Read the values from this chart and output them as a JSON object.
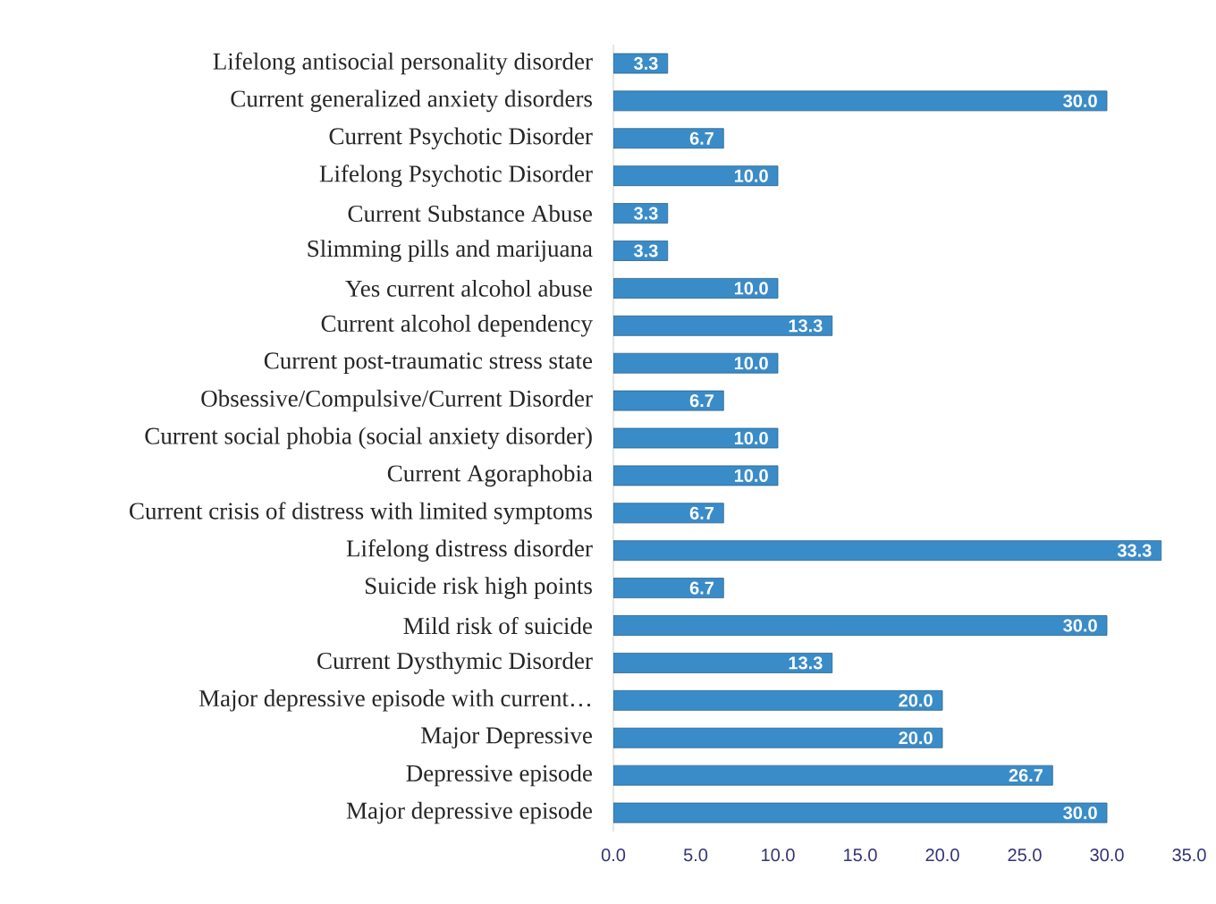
{
  "chart_data": {
    "type": "bar",
    "orientation": "horizontal",
    "color": "#3a8cc8",
    "value_labels": [
      "3.3",
      "30.0",
      "6.7",
      "10.0",
      "3.3",
      "3.3",
      "10.0",
      "13.3",
      "10.0",
      "6.7",
      "10.0",
      "10.0",
      "6.7",
      "33.3",
      "6.7",
      "30.0",
      "13.3",
      "20.0",
      "20.0",
      "26.7",
      "30.0"
    ],
    "categories": [
      "Lifelong antisocial personality disorder",
      "Current generalized  anxiety disorders",
      "Current Psychotic Disorder",
      "Lifelong Psychotic Disorder",
      "Current Substance  Abuse",
      "Slimming pills and marijuana",
      "Yes current alcohol abuse",
      "Current alcohol dependency",
      "Current post-traumatic stress state",
      "Obsessive/Compulsive/Current  Disorder",
      "Current social phobia (social anxiety disorder)",
      "Current Agoraphobia",
      "Current crisis of distress with limited symptoms",
      "Lifelong distress disorder",
      "Suicide risk high points",
      "Mild risk of suicide",
      "Current Dysthymic Disorder",
      "Major depressive episode with current…",
      "Major Depressive",
      "Depressive episode",
      "Major depressive episode"
    ],
    "values": [
      3.3,
      30.0,
      6.7,
      10.0,
      3.3,
      3.3,
      10.0,
      13.3,
      10.0,
      6.7,
      10.0,
      10.0,
      6.7,
      33.3,
      6.7,
      30.0,
      13.3,
      20.0,
      20.0,
      26.7,
      30.0
    ],
    "xlim": [
      0,
      35
    ],
    "xticks": [
      {
        "value": 0,
        "label": "0.0"
      },
      {
        "value": 5,
        "label": "5.0"
      },
      {
        "value": 10,
        "label": "10.0"
      },
      {
        "value": 15,
        "label": "15.0"
      },
      {
        "value": 20,
        "label": "20.0"
      },
      {
        "value": 25,
        "label": "25.0"
      },
      {
        "value": 30,
        "label": "30.0"
      },
      {
        "value": 35,
        "label": "35.0"
      }
    ]
  }
}
